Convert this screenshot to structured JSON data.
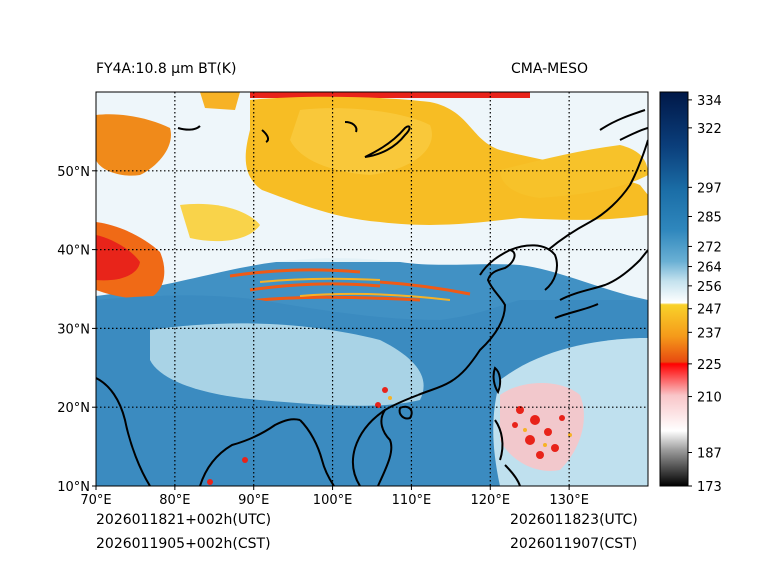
{
  "header": {
    "title_left": "FY4A:10.8 µm BT(K)",
    "title_right": "CMA-MESO"
  },
  "footer": {
    "init_utc": "2026011821+002h(UTC)",
    "init_cst": "2026011905+002h(CST)",
    "valid_utc": "2026011823(UTC)",
    "valid_cst": "2026011907(CST)"
  },
  "map": {
    "lon_range": [
      70,
      140
    ],
    "lat_range": [
      10,
      60
    ],
    "lat_ticks": [
      {
        "value": 50,
        "label": "50°N"
      },
      {
        "value": 40,
        "label": "40°N"
      },
      {
        "value": 30,
        "label": "30°N"
      },
      {
        "value": 20,
        "label": "20°N"
      },
      {
        "value": 10,
        "label": "10°N"
      }
    ],
    "lon_ticks": [
      {
        "value": 70,
        "label": "70°E"
      },
      {
        "value": 80,
        "label": "80°E"
      },
      {
        "value": 90,
        "label": "90°E"
      },
      {
        "value": 100,
        "label": "100°E"
      },
      {
        "value": 110,
        "label": "110°E"
      },
      {
        "value": 120,
        "label": "120°E"
      },
      {
        "value": 130,
        "label": "130°E"
      }
    ],
    "gridlines": true
  },
  "colorbar": {
    "min": 173,
    "max": 334,
    "ticks": [
      334,
      322,
      297,
      285,
      272,
      264,
      256,
      247,
      237,
      225,
      210,
      187,
      173
    ],
    "colors": {
      "cold_black": "#000000",
      "white_low": "#ffffff",
      "red": "#ff0000",
      "orange": "#f07a10",
      "yellow": "#f9c31a",
      "pale_blue": "#d6ecf4",
      "mid_blue": "#3a8fc0",
      "dark_navy": "#001a4d"
    }
  },
  "colors": {
    "ocean_blue": "#3f8fc3",
    "coastline": "#000000"
  }
}
